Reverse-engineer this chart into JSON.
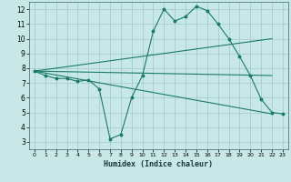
{
  "xlabel": "Humidex (Indice chaleur)",
  "background_color": "#c8e8e8",
  "line_color": "#1a7a6a",
  "grid_color": "#a0c8c8",
  "xlim": [
    -0.5,
    23.5
  ],
  "ylim": [
    2.5,
    12.5
  ],
  "xticks": [
    0,
    1,
    2,
    3,
    4,
    5,
    6,
    7,
    8,
    9,
    10,
    11,
    12,
    13,
    14,
    15,
    16,
    17,
    18,
    19,
    20,
    21,
    22,
    23
  ],
  "yticks": [
    3,
    4,
    5,
    6,
    7,
    8,
    9,
    10,
    11,
    12
  ],
  "series_main": {
    "x": [
      0,
      1,
      2,
      3,
      4,
      5,
      6,
      7,
      8,
      9,
      10,
      11,
      12,
      13,
      14,
      15,
      16,
      17,
      18,
      19,
      20,
      21,
      22,
      23
    ],
    "y": [
      7.8,
      7.5,
      7.3,
      7.3,
      7.1,
      7.2,
      6.6,
      3.2,
      3.5,
      6.0,
      7.5,
      10.5,
      12.0,
      11.2,
      11.5,
      12.2,
      11.9,
      11.0,
      10.0,
      8.8,
      7.5,
      5.9,
      5.0,
      4.9
    ]
  },
  "series_lines": [
    {
      "x": [
        0,
        22
      ],
      "y": [
        7.8,
        10.0
      ]
    },
    {
      "x": [
        0,
        22
      ],
      "y": [
        7.8,
        4.9
      ]
    },
    {
      "x": [
        0,
        22
      ],
      "y": [
        7.8,
        7.5
      ]
    }
  ]
}
